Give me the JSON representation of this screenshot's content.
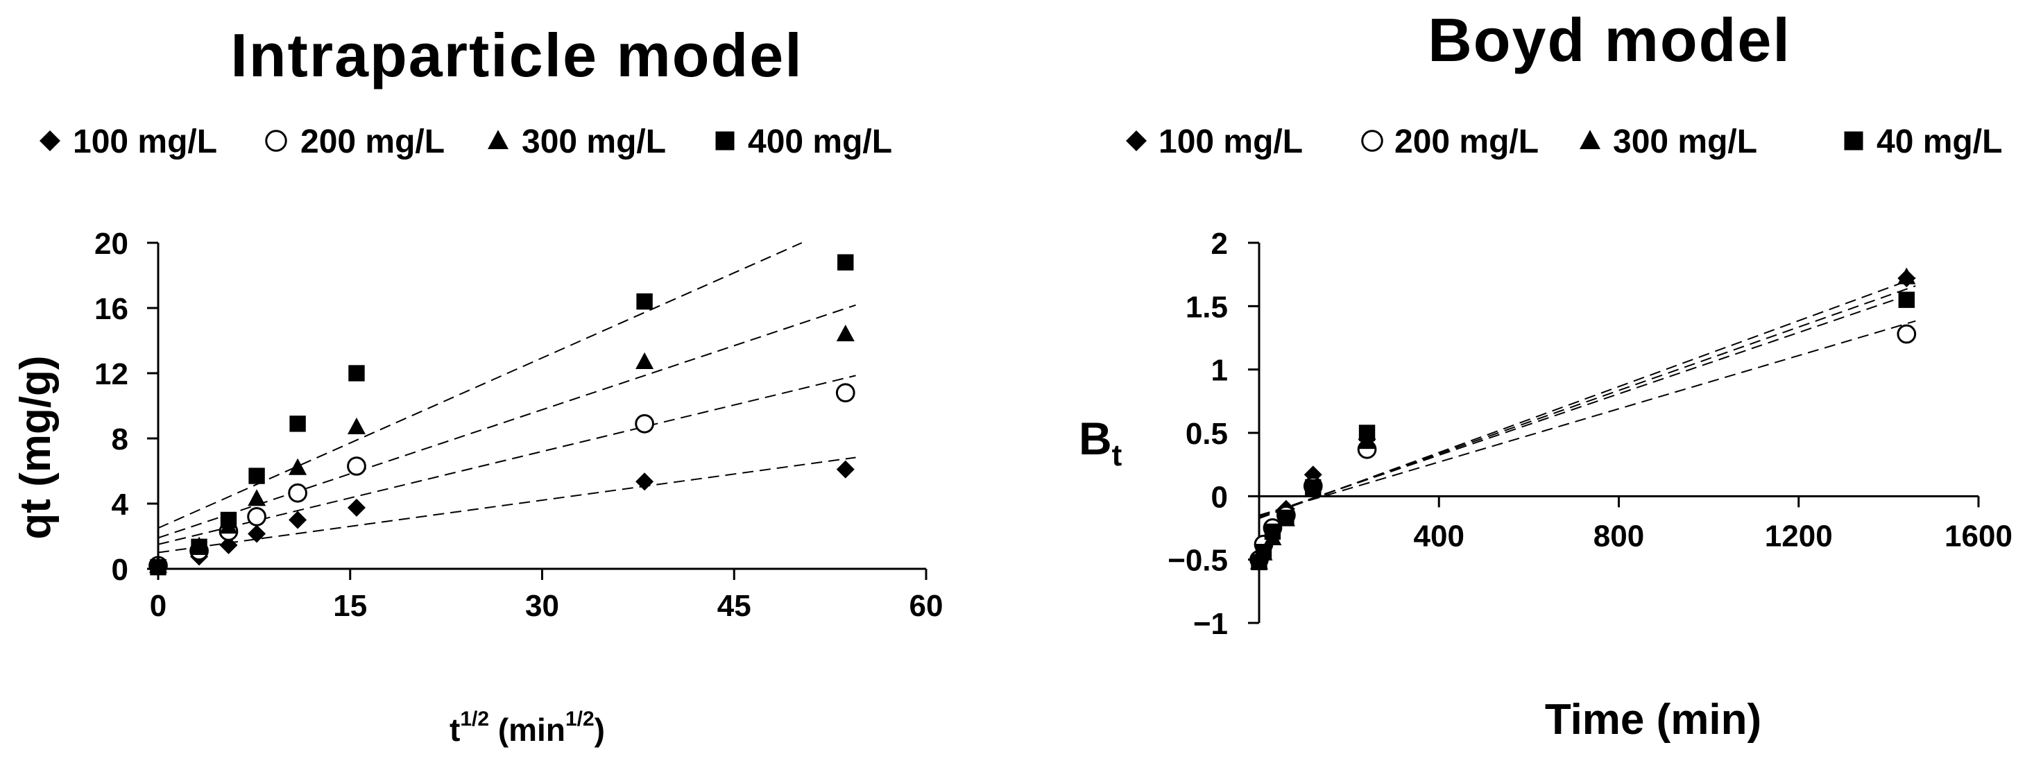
{
  "chart_data": [
    {
      "type": "scatter",
      "title": "Intraparticle model",
      "xlabel": "t",
      "xlabel_sup": "1/2",
      "xlabel_unit_open": " (min",
      "xlabel_unit_sup": "1/2",
      "xlabel_unit_close": ")",
      "ylabel": "qt (mg/g)",
      "xlim": [
        0,
        60
      ],
      "ylim": [
        0,
        20
      ],
      "xticks": [
        0,
        15,
        30,
        45,
        60
      ],
      "yticks": [
        0,
        4,
        8,
        12,
        16,
        20
      ],
      "legend": [
        "100 mg/L",
        "200 mg/L",
        "300 mg/L",
        "400 mg/L"
      ],
      "series": [
        {
          "name": "100 mg/L",
          "marker": "diamond",
          "x": [
            0,
            3.2,
            5.5,
            7.7,
            10.9,
            15.5,
            38,
            53.7
          ],
          "y": [
            0.15,
            0.75,
            1.45,
            2.15,
            3.0,
            3.75,
            5.35,
            6.1
          ],
          "fit": {
            "intercept": 1.0,
            "slope": 0.107
          }
        },
        {
          "name": "200 mg/L",
          "marker": "circle",
          "x": [
            0,
            3.2,
            5.5,
            7.7,
            10.9,
            15.5,
            38,
            53.7
          ],
          "y": [
            0.2,
            1.1,
            2.3,
            3.2,
            4.65,
            6.3,
            8.9,
            10.8
          ],
          "fit": {
            "intercept": 1.5,
            "slope": 0.19
          }
        },
        {
          "name": "300 mg/L",
          "marker": "triangle",
          "x": [
            0,
            3.2,
            5.5,
            7.7,
            10.9,
            15.5,
            38,
            53.7
          ],
          "y": [
            0.2,
            1.4,
            2.6,
            4.3,
            6.2,
            8.7,
            12.7,
            14.4
          ],
          "fit": {
            "intercept": 1.9,
            "slope": 0.262
          }
        },
        {
          "name": "400 mg/L",
          "marker": "square",
          "x": [
            0,
            3.2,
            5.5,
            7.7,
            10.9,
            15.5,
            38,
            53.7
          ],
          "y": [
            0.1,
            1.35,
            3.0,
            5.7,
            8.9,
            12.0,
            16.4,
            18.8
          ],
          "fit": {
            "intercept": 2.5,
            "slope": 0.348
          }
        }
      ]
    },
    {
      "type": "scatter",
      "title": "Boyd model",
      "xlabel": "Time (min)",
      "ylabel": "B",
      "ylabel_sub": "t",
      "xlim": [
        0,
        1600
      ],
      "ylim": [
        -1,
        2
      ],
      "xticks": [
        400,
        800,
        1200,
        1600
      ],
      "yticks": [
        -1,
        -0.5,
        0,
        0.5,
        1,
        1.5,
        2
      ],
      "legend": [
        "100 mg/L",
        "200 mg/L",
        "300 mg/L",
        "40 mg/L"
      ],
      "series": [
        {
          "name": "100 mg/L",
          "marker": "diamond",
          "x": [
            0,
            10,
            30,
            60,
            120,
            240,
            1440
          ],
          "y": [
            -0.5,
            -0.4,
            -0.27,
            -0.1,
            0.17,
            0.45,
            1.72
          ],
          "fit": {
            "intercept": -0.165,
            "slope": 0.00125
          }
        },
        {
          "name": "200 mg/L",
          "marker": "circle",
          "x": [
            0,
            10,
            30,
            60,
            120,
            240,
            1440
          ],
          "y": [
            -0.5,
            -0.38,
            -0.25,
            -0.15,
            0.08,
            0.37,
            1.28
          ],
          "fit": {
            "intercept": -0.15,
            "slope": 0.00105
          }
        },
        {
          "name": "300 mg/L",
          "marker": "triangle",
          "x": [
            0,
            10,
            30,
            60,
            120,
            240,
            1440
          ],
          "y": [
            -0.52,
            -0.45,
            -0.33,
            -0.18,
            0.05,
            0.43,
            1.73
          ],
          "fit": {
            "intercept": -0.175,
            "slope": 0.0013
          }
        },
        {
          "name": "40 mg/L",
          "marker": "square",
          "x": [
            0,
            10,
            30,
            60,
            120,
            240,
            1440
          ],
          "y": [
            -0.52,
            -0.44,
            -0.28,
            -0.17,
            0.07,
            0.5,
            1.55
          ],
          "fit": {
            "intercept": -0.16,
            "slope": 0.00121
          }
        }
      ]
    }
  ]
}
